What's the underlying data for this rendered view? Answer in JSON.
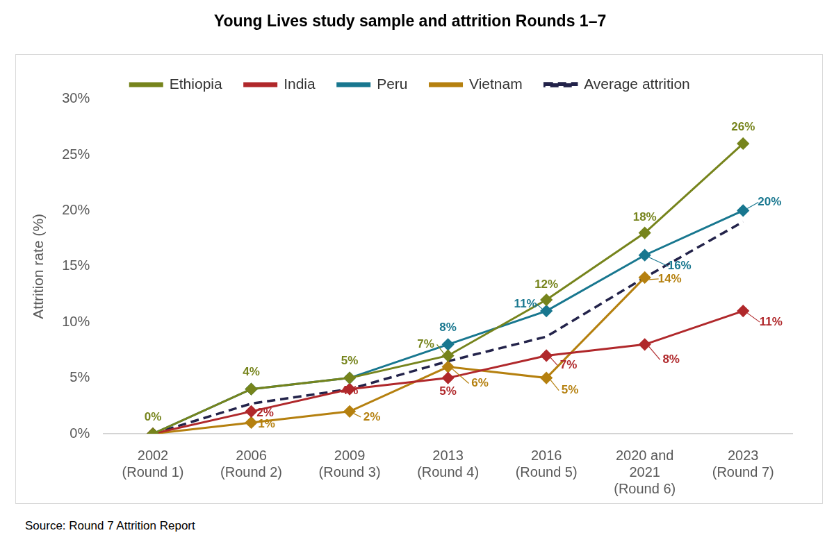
{
  "chart_data": {
    "type": "line",
    "title": "Young Lives study sample and attrition Rounds 1–7",
    "source": "Source: Round 7 Attrition Report",
    "y_label": "Attrition rate (%)",
    "categories": [
      "2002 (Round 1)",
      "2006 (Round 2)",
      "2009 (Round 3)",
      "2013 (Round 4)",
      "2016 (Round 5)",
      "2020 and 2021 (Round 6)",
      "2023 (Round 7)"
    ],
    "series": [
      {
        "name": "Ethiopia",
        "color": "#76841c",
        "marker": "diamond",
        "line_style": "solid",
        "values": [
          0,
          4,
          5,
          7,
          12,
          18,
          26
        ],
        "value_labels": [
          "0%",
          "4%",
          "5%",
          "7%",
          "12%",
          "18%",
          "26%"
        ]
      },
      {
        "name": "India",
        "color": "#b0282b",
        "marker": "diamond",
        "line_style": "solid",
        "values": [
          0,
          2,
          4,
          5,
          7,
          8,
          11
        ],
        "value_labels": [
          null,
          "2%",
          "4%",
          "5%",
          "7%",
          "8%",
          "11%"
        ]
      },
      {
        "name": "Peru",
        "color": "#18778f",
        "marker": "diamond",
        "line_style": "solid",
        "values": [
          0,
          4,
          5,
          8,
          11,
          16,
          20
        ],
        "value_labels": [
          null,
          null,
          null,
          "8%",
          "11%",
          "16%",
          "20%"
        ]
      },
      {
        "name": "Vietnam",
        "color": "#b5800f",
        "marker": "diamond",
        "line_style": "solid",
        "values": [
          0,
          1,
          2,
          6,
          5,
          14,
          null
        ],
        "value_labels": [
          null,
          "1%",
          "2%",
          "6%",
          "5%",
          "14%",
          null
        ]
      },
      {
        "name": "Average attrition",
        "color": "#23234a",
        "marker": "none",
        "line_style": "dashed",
        "values": [
          0,
          2.7,
          4,
          6.5,
          8.7,
          14,
          19
        ]
      }
    ],
    "ylim": [
      0,
      30
    ],
    "yticks": [
      {
        "value": 0,
        "label": "0%"
      },
      {
        "value": 5,
        "label": "5%"
      },
      {
        "value": 10,
        "label": "10%"
      },
      {
        "value": 15,
        "label": "15%"
      },
      {
        "value": 20,
        "label": "20%"
      },
      {
        "value": 25,
        "label": "25%"
      },
      {
        "value": 30,
        "label": "30%"
      }
    ],
    "grid": false,
    "legend": "top",
    "data_labels": true
  }
}
